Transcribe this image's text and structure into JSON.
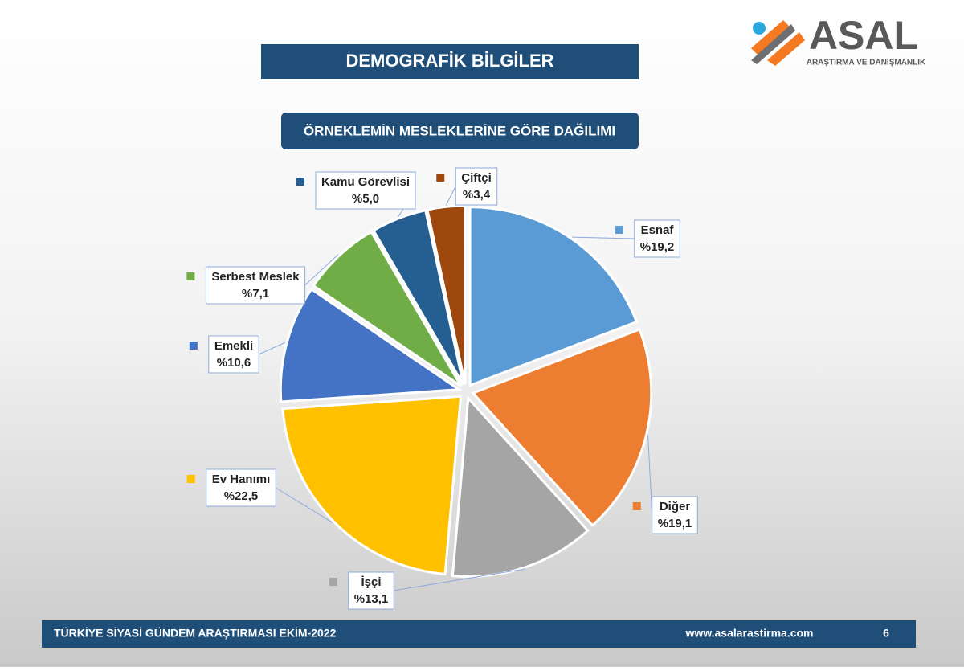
{
  "header": {
    "title": "DEMOGRAFİK BİLGİLER"
  },
  "logo": {
    "name": "ASAL",
    "tagline": "ARAŞTIRMA VE DANIŞMANLIK"
  },
  "footer": {
    "left": "TÜRKİYE SİYASİ GÜNDEM ARAŞTIRMASI EKİM-2022",
    "url": "www.asalarastirma.com",
    "page": "6"
  },
  "chart_data": {
    "type": "pie",
    "title": "ÖRNEKLEMİN MESLEKLERİNE GÖRE DAĞILIMI",
    "categories": [
      "Esnaf",
      "Diğer",
      "İşçi",
      "Ev Hanımı",
      "Emekli",
      "Serbest Meslek",
      "Kamu Görevlisi",
      "Çiftçi"
    ],
    "values": [
      19.2,
      19.1,
      13.1,
      22.5,
      10.6,
      7.1,
      5.0,
      3.4
    ],
    "value_labels": [
      "%19,2",
      "%19,1",
      "%13,1",
      "%22,5",
      "%10,6",
      "%7,1",
      "%5,0",
      "%3,4"
    ],
    "colors": [
      "#5b9bd5",
      "#ed7d31",
      "#a5a5a5",
      "#ffc000",
      "#4472c4",
      "#70ad47",
      "#255e91",
      "#9e480e"
    ]
  }
}
